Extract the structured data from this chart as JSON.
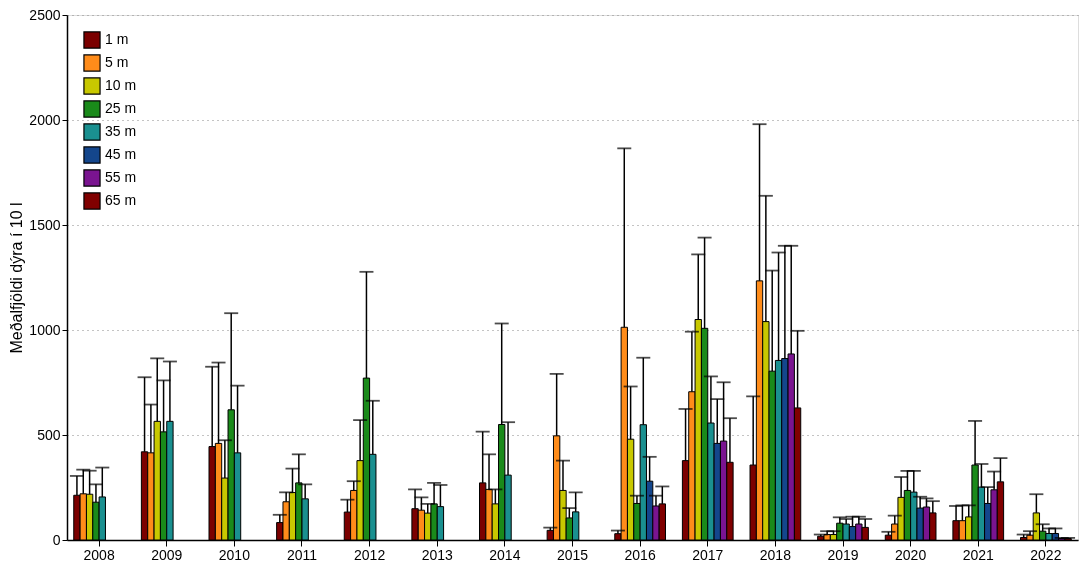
{
  "chart_data": {
    "type": "bar",
    "ylabel": "Meðalfjöldi dýra í 10 l",
    "categories": [
      "2008",
      "2009",
      "2010",
      "2011",
      "2012",
      "2013",
      "2014",
      "2015",
      "2016",
      "2017",
      "2018",
      "2019",
      "2020",
      "2021",
      "2022"
    ],
    "ylim": [
      0,
      2500
    ],
    "yticks": [
      0,
      500,
      1000,
      1500,
      2000,
      2500
    ],
    "grid": "y",
    "legend": "top left",
    "series": [
      {
        "name": "1 m",
        "color": "#7b0000",
        "values": [
          213,
          420,
          445,
          83,
          133,
          149,
          272,
          46,
          30,
          378,
          357,
          18,
          23,
          92,
          12
        ],
        "errors": [
          92,
          355,
          380,
          37,
          59,
          92,
          244,
          13,
          15,
          246,
          327,
          8,
          16,
          70,
          14
        ]
      },
      {
        "name": "5 m",
        "color": "#ff8c1a",
        "values": [
          220,
          415,
          460,
          182,
          236,
          142,
          241,
          496,
          1013,
          706,
          1234,
          26,
          76,
          92,
          23
        ],
        "errors": [
          115,
          230,
          385,
          45,
          44,
          61,
          167,
          295,
          852,
          286,
          746,
          16,
          40,
          73,
          19
        ]
      },
      {
        "name": "10 m",
        "color": "#c8c800",
        "values": [
          218,
          565,
          295,
          226,
          378,
          128,
          172,
          236,
          480,
          1050,
          1040,
          26,
          203,
          110,
          129
        ],
        "errors": [
          112,
          300,
          180,
          114,
          193,
          44,
          69,
          142,
          251,
          310,
          599,
          16,
          97,
          55,
          89
        ]
      },
      {
        "name": "25 m",
        "color": "#1a8a1a",
        "values": [
          180,
          515,
          620,
          272,
          771,
          172,
          550,
          105,
          174,
          1008,
          804,
          80,
          236,
          357,
          42
        ],
        "errors": [
          85,
          245,
          460,
          136,
          506,
          100,
          481,
          47,
          37,
          432,
          479,
          28,
          93,
          210,
          33
        ]
      },
      {
        "name": "35 m",
        "color": "#1a9090",
        "values": [
          205,
          565,
          415,
          196,
          408,
          159,
          309,
          134,
          549,
          557,
          855,
          76,
          228,
          252,
          31
        ],
        "errors": [
          140,
          285,
          320,
          69,
          255,
          103,
          252,
          93,
          319,
          222,
          514,
          24,
          101,
          110,
          24
        ]
      },
      {
        "name": "45 m",
        "color": "#14468c",
        "values": [
          null,
          null,
          null,
          null,
          null,
          null,
          null,
          null,
          280,
          460,
          864,
          64,
          152,
          174,
          31
        ],
        "errors": [
          null,
          null,
          null,
          null,
          null,
          null,
          null,
          null,
          116,
          211,
          537,
          47,
          54,
          78,
          24
        ]
      },
      {
        "name": "55 m",
        "color": "#7a1490",
        "values": [
          null,
          null,
          null,
          null,
          null,
          null,
          null,
          null,
          162,
          471,
          886,
          76,
          157,
          239,
          7
        ],
        "errors": [
          null,
          null,
          null,
          null,
          null,
          null,
          null,
          null,
          49,
          280,
          515,
          35,
          41,
          87,
          3
        ]
      },
      {
        "name": "65 m",
        "color": "#800000",
        "values": [
          null,
          null,
          null,
          null,
          null,
          null,
          null,
          null,
          172,
          370,
          629,
          60,
          129,
          277,
          7
        ],
        "errors": [
          null,
          null,
          null,
          null,
          null,
          null,
          null,
          null,
          83,
          210,
          367,
          40,
          56,
          113,
          3
        ]
      }
    ]
  }
}
